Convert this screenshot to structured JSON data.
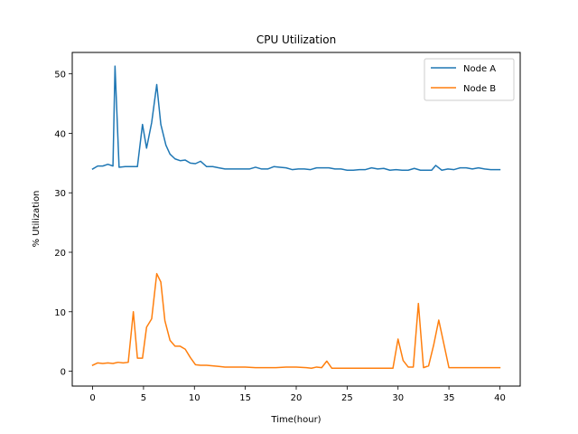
{
  "chart_data": {
    "type": "line",
    "title": "CPU Utilization",
    "xlabel": "Time(hour)",
    "ylabel": "% Utilization",
    "xlim": [
      -2,
      42
    ],
    "ylim": [
      -2.5,
      53.6
    ],
    "xticks": [
      0,
      5,
      10,
      15,
      20,
      25,
      30,
      35,
      40
    ],
    "yticks": [
      0,
      10,
      20,
      30,
      40,
      50
    ],
    "grid": false,
    "legend_position": "top-right",
    "series": [
      {
        "name": "Node A",
        "color": "#1f77b4",
        "x": [
          0,
          0.5,
          1,
          1.5,
          2,
          2.2,
          2.6,
          3.2,
          3.8,
          4.4,
          4.9,
          5.3,
          5.8,
          6.3,
          6.7,
          7.2,
          7.6,
          8.1,
          8.6,
          9.1,
          9.6,
          10.1,
          10.6,
          11.2,
          11.8,
          12.4,
          13.0,
          13.6,
          14.2,
          14.8,
          15.4,
          16.0,
          16.6,
          17.2,
          17.8,
          18.4,
          19.0,
          19.6,
          20.2,
          20.8,
          21.4,
          22.0,
          22.6,
          23.2,
          23.8,
          24.4,
          25.0,
          25.6,
          26.2,
          26.8,
          27.4,
          28.0,
          28.6,
          29.2,
          29.8,
          30.4,
          31.0,
          31.6,
          32.2,
          32.8,
          33.3,
          33.7,
          34.3,
          34.9,
          35.5,
          36.1,
          36.7,
          37.3,
          37.9,
          38.5,
          39.1,
          39.7,
          40.0
        ],
        "y": [
          34.0,
          34.5,
          34.5,
          34.8,
          34.5,
          51.3,
          34.3,
          34.4,
          34.4,
          34.4,
          41.5,
          37.5,
          41.8,
          48.2,
          41.5,
          38.0,
          36.5,
          35.7,
          35.4,
          35.5,
          35.0,
          34.9,
          35.3,
          34.4,
          34.4,
          34.2,
          34.0,
          34.0,
          34.0,
          34.0,
          34.0,
          34.3,
          34.0,
          34.0,
          34.4,
          34.3,
          34.2,
          33.9,
          34.0,
          34.0,
          33.9,
          34.2,
          34.2,
          34.2,
          34.0,
          34.0,
          33.8,
          33.8,
          33.9,
          33.9,
          34.2,
          34.0,
          34.1,
          33.8,
          33.9,
          33.8,
          33.8,
          34.1,
          33.8,
          33.8,
          33.8,
          34.6,
          33.8,
          34.0,
          33.9,
          34.2,
          34.2,
          34.0,
          34.2,
          34.0,
          33.9,
          33.9,
          33.9
        ]
      },
      {
        "name": "Node B",
        "color": "#ff7f0e",
        "x": [
          0,
          0.5,
          1,
          1.5,
          2,
          2.5,
          3,
          3.5,
          4.0,
          4.4,
          4.9,
          5.3,
          5.8,
          6.3,
          6.7,
          7.1,
          7.6,
          8.1,
          8.6,
          9.1,
          9.6,
          10.1,
          10.6,
          11.2,
          11.8,
          12.4,
          13.0,
          14.0,
          15.0,
          16.0,
          17.0,
          18.0,
          19.0,
          20.0,
          21.0,
          21.5,
          22.0,
          22.5,
          23.0,
          23.5,
          24.0,
          25.0,
          26.0,
          27.0,
          28.0,
          29.0,
          29.5,
          30.0,
          30.5,
          31.0,
          31.5,
          32.0,
          32.5,
          33.0,
          33.5,
          34.0,
          35.0,
          36.0,
          37.0,
          38.0,
          39.0,
          40.0
        ],
        "y": [
          1.0,
          1.4,
          1.3,
          1.4,
          1.3,
          1.5,
          1.4,
          1.5,
          10.0,
          2.2,
          2.2,
          7.4,
          8.8,
          16.4,
          15.0,
          8.5,
          5.2,
          4.2,
          4.2,
          3.7,
          2.3,
          1.1,
          1.0,
          1.0,
          0.9,
          0.8,
          0.7,
          0.7,
          0.7,
          0.6,
          0.6,
          0.6,
          0.7,
          0.7,
          0.6,
          0.5,
          0.7,
          0.6,
          1.7,
          0.5,
          0.5,
          0.5,
          0.5,
          0.5,
          0.5,
          0.5,
          0.5,
          5.4,
          1.8,
          0.7,
          0.7,
          11.4,
          0.6,
          0.9,
          4.4,
          8.6,
          0.6,
          0.6,
          0.6,
          0.6,
          0.6,
          0.6
        ]
      }
    ]
  }
}
